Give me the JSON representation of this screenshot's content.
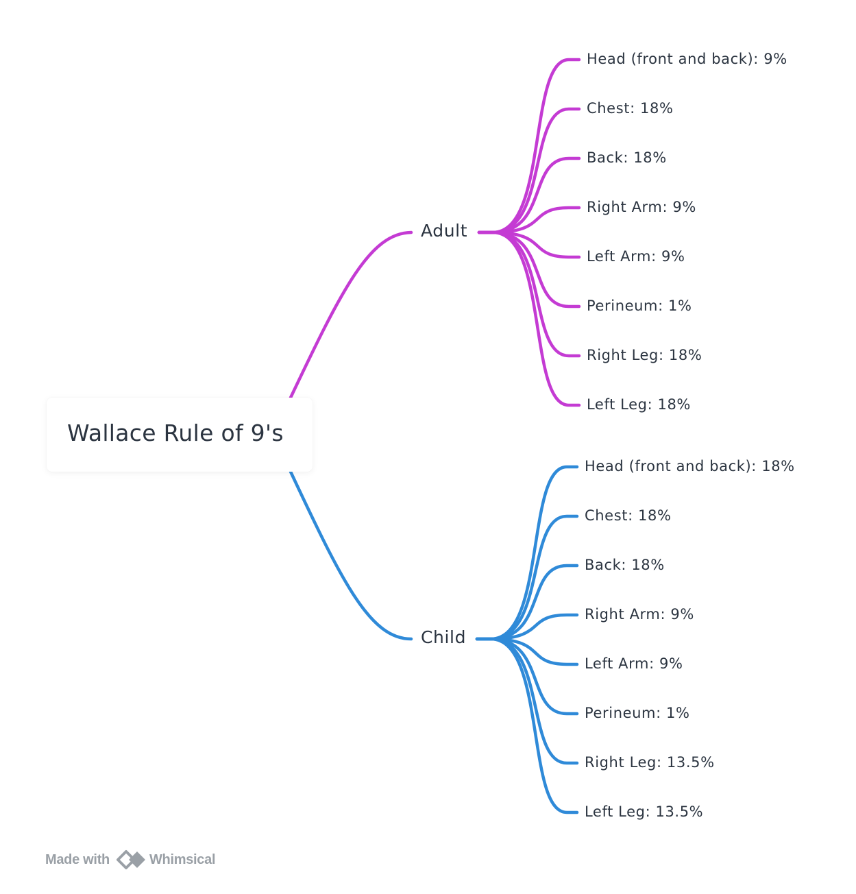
{
  "root": {
    "title": "Wallace Rule of 9's"
  },
  "colors": {
    "adult": "#c43bd3",
    "child": "#2f8ad8",
    "text": "#2b3440",
    "footer": "#9aa0a6"
  },
  "branches": [
    {
      "label": "Adult",
      "color_key": "adult",
      "leaves": [
        "Head (front and back): 9%",
        "Chest: 18%",
        "Back: 18%",
        "Right Arm: 9%",
        "Left Arm: 9%",
        "Perineum: 1%",
        "Right Leg: 18%",
        "Left Leg: 18%"
      ]
    },
    {
      "label": "Child",
      "color_key": "child",
      "leaves": [
        "Head (front and back): 18%",
        "Chest: 18%",
        "Back: 18%",
        "Right Arm: 9%",
        "Left Arm: 9%",
        "Perineum: 1%",
        "Right Leg: 13.5%",
        "Left Leg: 13.5%"
      ]
    }
  ],
  "footer": {
    "made_with": "Made with",
    "brand": "Whimsical",
    "brand_icon": "whimsical-logo-icon"
  }
}
